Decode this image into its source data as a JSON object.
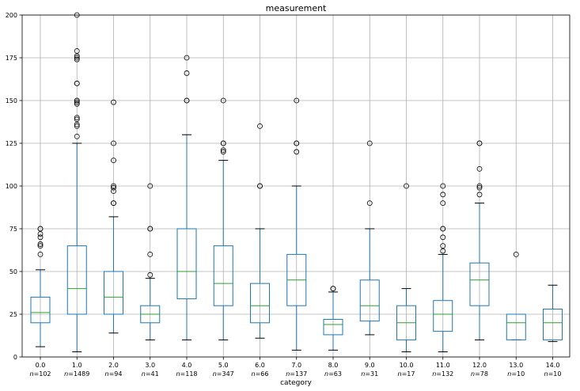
{
  "chart_data": {
    "type": "box",
    "title": "measurement",
    "xlabel": "category",
    "ylabel": "",
    "ylim": [
      0,
      200
    ],
    "yticks": [
      0,
      25,
      50,
      75,
      100,
      125,
      150,
      175,
      200
    ],
    "grid": true,
    "colors": {
      "box": "#1f77b4",
      "median": "#2ca02c",
      "flier": "#000000",
      "grid": "#b0b0b0"
    },
    "groups": [
      {
        "label": "0.0",
        "n": "n=102",
        "whislo": 6,
        "q1": 20,
        "median": 26,
        "q3": 35,
        "whishi": 51,
        "fliers": [
          60,
          65,
          66,
          70,
          72,
          75,
          75
        ]
      },
      {
        "label": "1.0",
        "n": "n=1489",
        "whislo": 3,
        "q1": 25,
        "median": 40,
        "q3": 65,
        "whishi": 125,
        "fliers": [
          129,
          135,
          136,
          139,
          140,
          148,
          149,
          150,
          150,
          160,
          160,
          174,
          175,
          176,
          179,
          200
        ]
      },
      {
        "label": "2.0",
        "n": "n=94",
        "whislo": 14,
        "q1": 25,
        "median": 35,
        "q3": 50,
        "whishi": 82,
        "fliers": [
          90,
          90,
          97,
          99,
          100,
          115,
          125,
          149
        ]
      },
      {
        "label": "3.0",
        "n": "n=41",
        "whislo": 10,
        "q1": 20,
        "median": 25,
        "q3": 30,
        "whishi": 46,
        "fliers": [
          48,
          60,
          75,
          75,
          100
        ]
      },
      {
        "label": "4.0",
        "n": "n=118",
        "whislo": 10,
        "q1": 34,
        "median": 50,
        "q3": 75,
        "whishi": 130,
        "fliers": [
          150,
          150,
          166,
          175
        ]
      },
      {
        "label": "5.0",
        "n": "n=347",
        "whislo": 10,
        "q1": 30,
        "median": 43,
        "q3": 65,
        "whishi": 115,
        "fliers": [
          120,
          121,
          125,
          125,
          150
        ]
      },
      {
        "label": "6.0",
        "n": "n=66",
        "whislo": 11,
        "q1": 20,
        "median": 30,
        "q3": 43,
        "whishi": 75,
        "fliers": [
          100,
          100,
          135
        ]
      },
      {
        "label": "7.0",
        "n": "n=137",
        "whislo": 4,
        "q1": 30,
        "median": 45,
        "q3": 60,
        "whishi": 100,
        "fliers": [
          120,
          125,
          125,
          150
        ]
      },
      {
        "label": "8.0",
        "n": "n=63",
        "whislo": 4,
        "q1": 13,
        "median": 19,
        "q3": 22,
        "whishi": 38,
        "fliers": [
          40,
          40
        ]
      },
      {
        "label": "9.0",
        "n": "n=31",
        "whislo": 13,
        "q1": 21,
        "median": 30,
        "q3": 45,
        "whishi": 75,
        "fliers": [
          90,
          125
        ]
      },
      {
        "label": "10.0",
        "n": "n=17",
        "whislo": 3,
        "q1": 10,
        "median": 20,
        "q3": 30,
        "whishi": 40,
        "fliers": [
          100
        ]
      },
      {
        "label": "11.0",
        "n": "n=132",
        "whislo": 3,
        "q1": 15,
        "median": 25,
        "q3": 33,
        "whishi": 60,
        "fliers": [
          62,
          65,
          70,
          75,
          75,
          90,
          95,
          100
        ]
      },
      {
        "label": "12.0",
        "n": "n=78",
        "whislo": 10,
        "q1": 30,
        "median": 45,
        "q3": 55,
        "whishi": 90,
        "fliers": [
          95,
          99,
          100,
          110,
          125,
          125
        ]
      },
      {
        "label": "13.0",
        "n": "n=10",
        "whislo": 10,
        "q1": 10,
        "median": 20,
        "q3": 25,
        "whishi": 25,
        "fliers": [
          60
        ]
      },
      {
        "label": "14.0",
        "n": "n=10",
        "whislo": 9,
        "q1": 10,
        "median": 20,
        "q3": 28,
        "whishi": 42,
        "fliers": []
      }
    ]
  }
}
